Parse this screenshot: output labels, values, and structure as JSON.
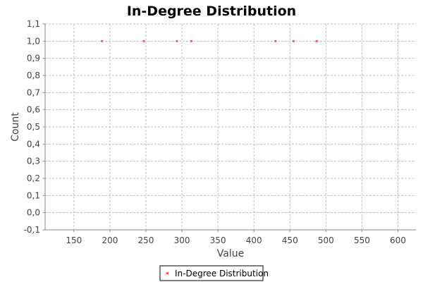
{
  "chart_data": {
    "type": "scatter",
    "title": "In-Degree Distribution",
    "xlabel": "Value",
    "ylabel": "Count",
    "xlim": [
      110,
      625
    ],
    "ylim": [
      -0.1,
      1.1
    ],
    "x_ticks": [
      "150",
      "200",
      "250",
      "300",
      "350",
      "400",
      "450",
      "500",
      "550",
      "600"
    ],
    "y_ticks": [
      "-0,1",
      "0,0",
      "0,1",
      "0,2",
      "0,3",
      "0,4",
      "0,5",
      "0,6",
      "0,7",
      "0,8",
      "0,9",
      "1,0",
      "1,1"
    ],
    "grid": true,
    "legend_position": "bottom",
    "series": [
      {
        "name": "In-Degree Distribution",
        "color": "#ff5555",
        "x": [
          189,
          247,
          293,
          313,
          430,
          455,
          487
        ],
        "y": [
          1,
          1,
          1,
          1,
          1,
          1,
          1
        ]
      }
    ]
  }
}
